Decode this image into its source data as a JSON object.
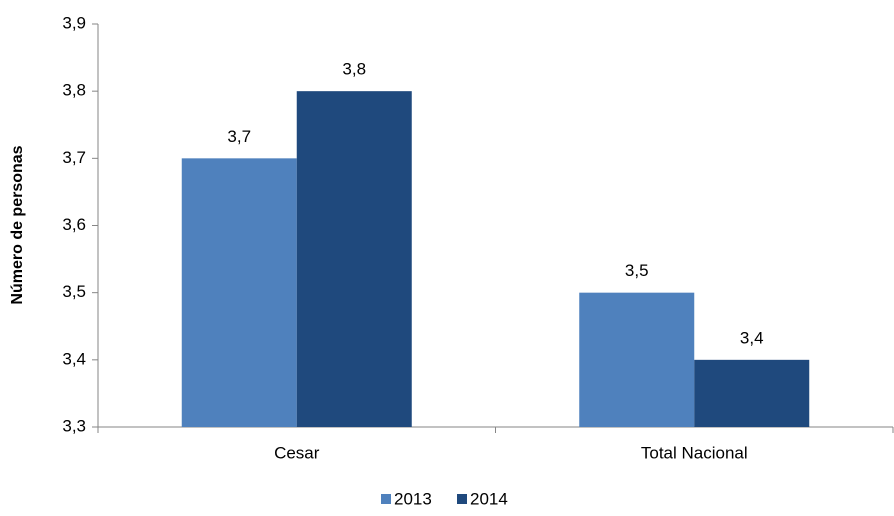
{
  "chart_data": {
    "type": "bar",
    "y_label": "Número de personas",
    "categories": [
      "Cesar",
      "Total Nacional"
    ],
    "series": [
      {
        "name": "2013",
        "color": "#4f81bd",
        "values": [
          3.7,
          3.5
        ],
        "value_labels": [
          "3,7",
          "3,5"
        ]
      },
      {
        "name": "2014",
        "color": "#1f497d",
        "values": [
          3.8,
          3.4
        ],
        "value_labels": [
          "3,8",
          "3,4"
        ]
      }
    ],
    "ylim": [
      3.3,
      3.9
    ],
    "yticks": [
      {
        "value": 3.3,
        "label": "3,3"
      },
      {
        "value": 3.4,
        "label": "3,4"
      },
      {
        "value": 3.5,
        "label": "3,5"
      },
      {
        "value": 3.6,
        "label": "3,6"
      },
      {
        "value": 3.7,
        "label": "3,7"
      },
      {
        "value": 3.8,
        "label": "3,8"
      },
      {
        "value": 3.9,
        "label": "3,9"
      }
    ],
    "grid": false,
    "legend": "bottom"
  }
}
